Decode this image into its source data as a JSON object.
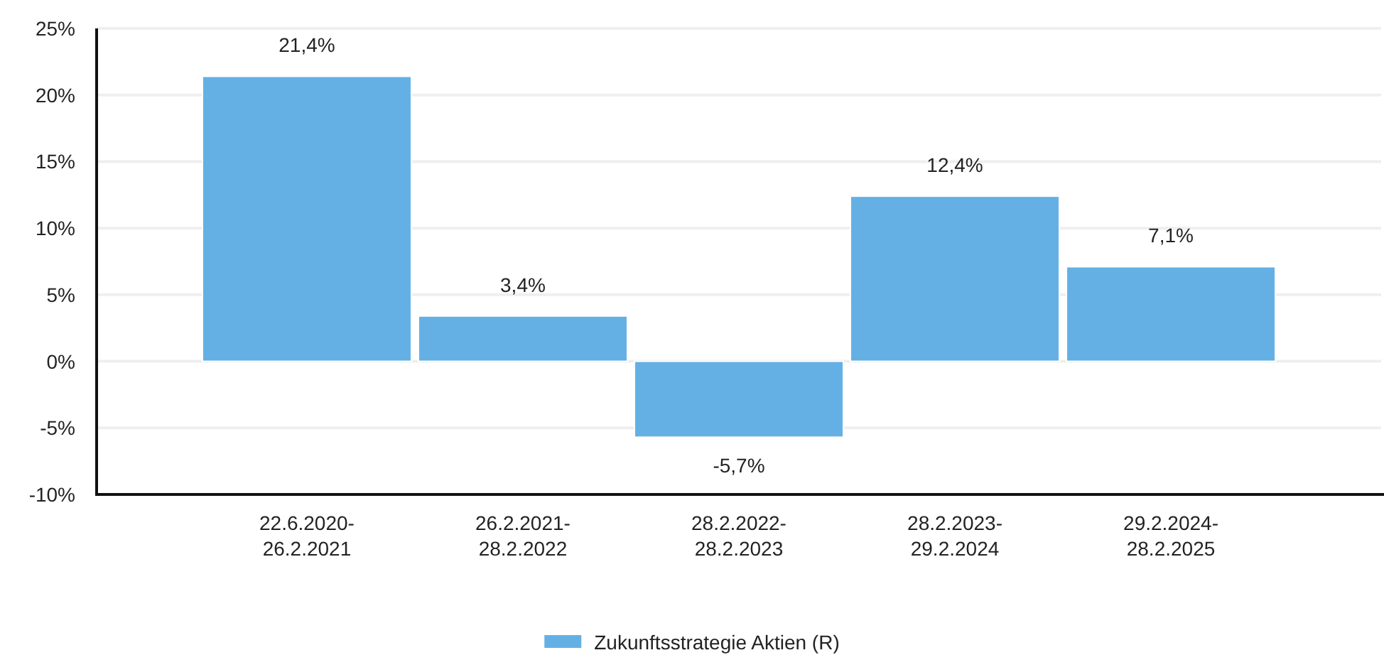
{
  "chart_data": {
    "type": "bar",
    "categories": [
      "22.6.2020-26.2.2021",
      "26.2.2021-28.2.2022",
      "28.2.2022-28.2.2023",
      "28.2.2023-29.2.2024",
      "29.2.2024-28.2.2025"
    ],
    "series": [
      {
        "name": "Zukunftsstrategie Aktien (R)",
        "color": "#64b0e4",
        "values": [
          21.4,
          3.4,
          -5.7,
          12.4,
          7.1
        ],
        "value_labels": [
          "21,4%",
          "3,4%",
          "-5,7%",
          "12,4%",
          "7,1%"
        ]
      }
    ],
    "ylim": [
      -10,
      25
    ],
    "yticks": [
      {
        "value": -10,
        "label": "-10%"
      },
      {
        "value": -5,
        "label": "-5%"
      },
      {
        "value": 0,
        "label": "0%"
      },
      {
        "value": 5,
        "label": "5%"
      },
      {
        "value": 10,
        "label": "10%"
      },
      {
        "value": 15,
        "label": "15%"
      },
      {
        "value": 20,
        "label": "20%"
      },
      {
        "value": 25,
        "label": "25%"
      }
    ],
    "grid": "y",
    "legend": "bottom"
  }
}
